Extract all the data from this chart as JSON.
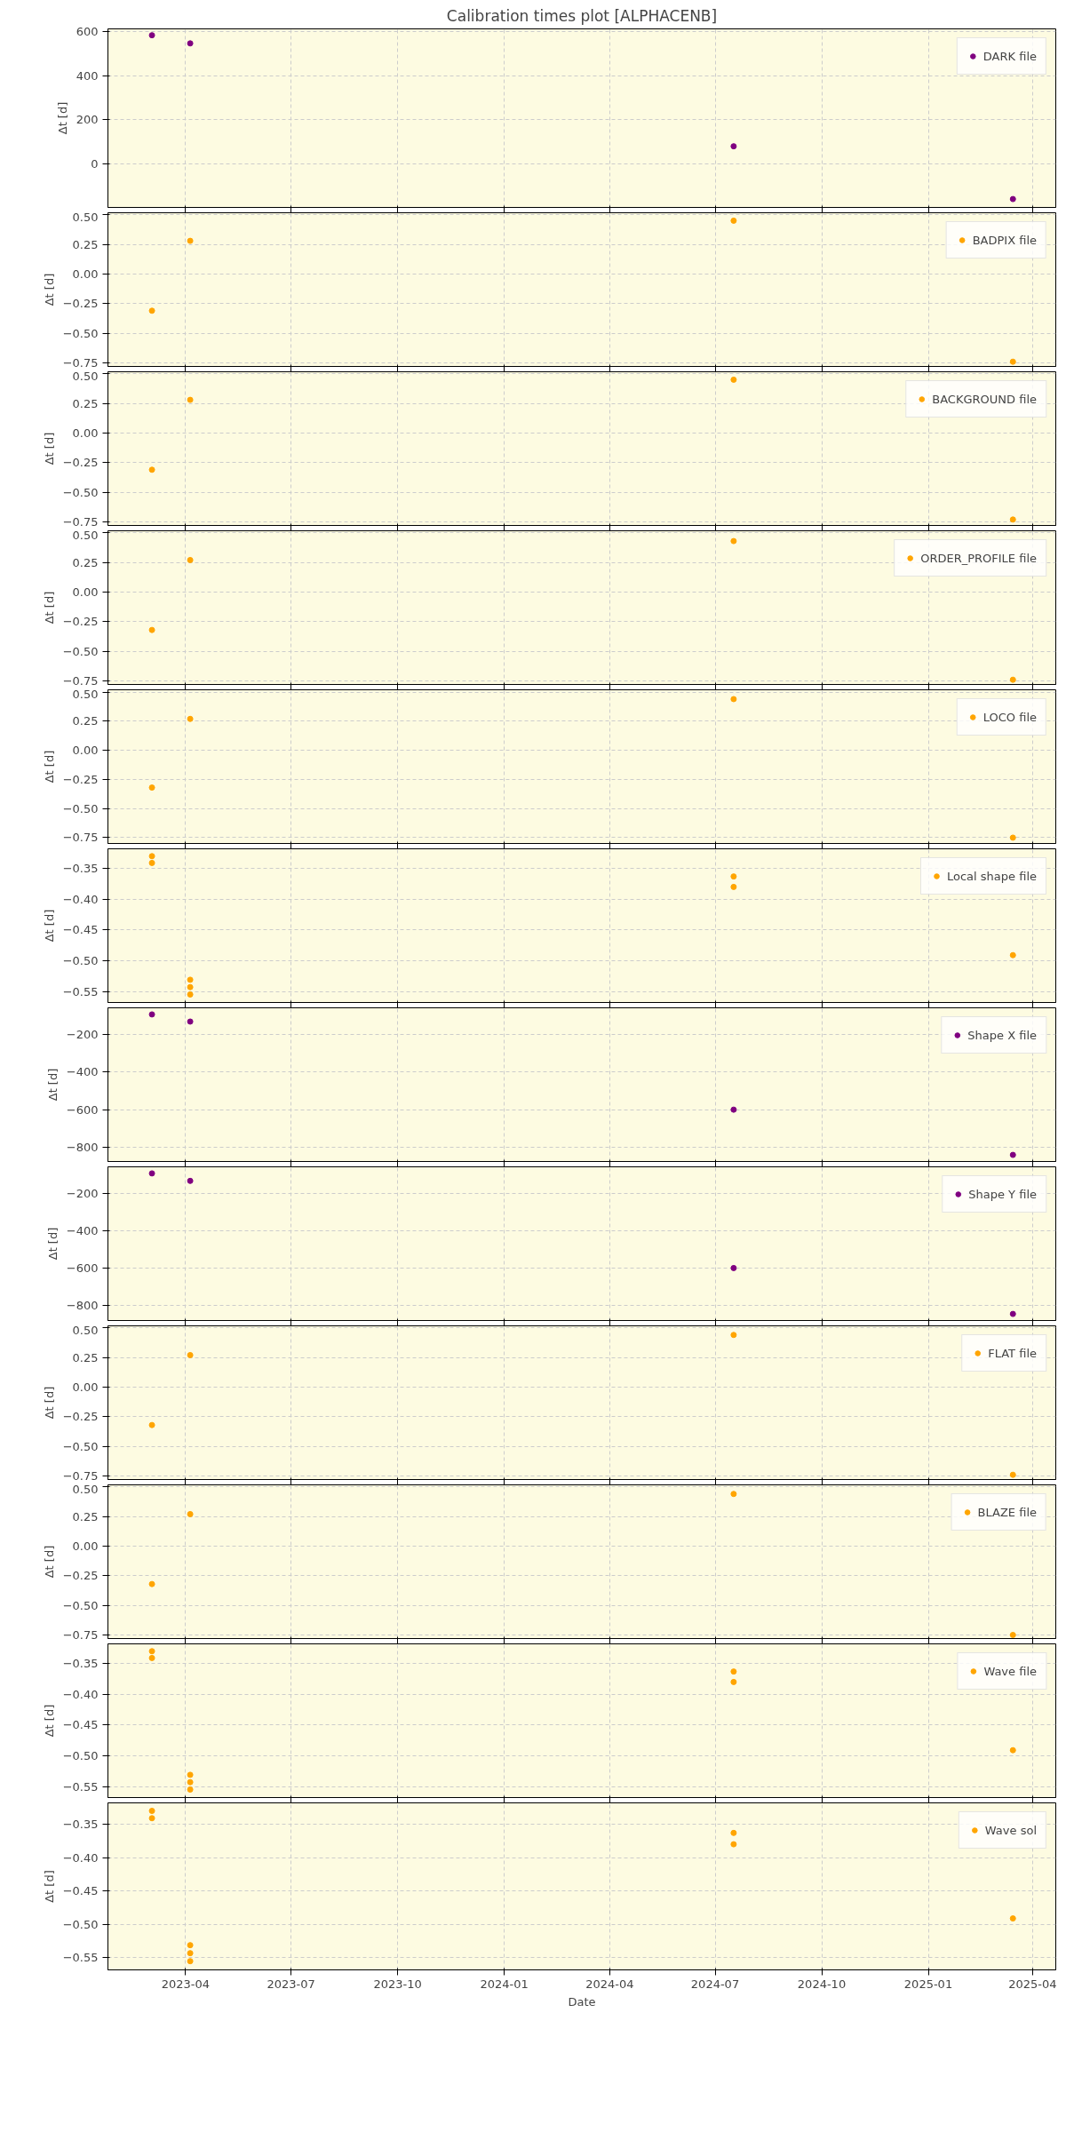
{
  "chart_data": [
    {
      "type": "scatter",
      "title": "Calibration times plot [ALPHACENB]",
      "ylabel": "Δt [d]",
      "x": [
        "2023-03-03",
        "2023-04-05",
        "2024-07-17",
        "2025-03-15"
      ],
      "series": [
        {
          "name": "DARK file",
          "color": "#800080",
          "values": [
            585,
            548,
            80,
            -160
          ]
        }
      ],
      "xlim": [
        "2023-01-24",
        "2025-04-21"
      ],
      "xticks": [
        "2023-04",
        "2023-07",
        "2023-10",
        "2024-01",
        "2024-04",
        "2024-07",
        "2024-10",
        "2025-01",
        "2025-04"
      ],
      "ylim": [
        -198,
        614
      ],
      "yticks": [
        0,
        200,
        400,
        600
      ],
      "tick_labels": "y",
      "grid": true,
      "legend": "top right",
      "marker": "circle"
    },
    {
      "type": "scatter",
      "ylabel": "Δt [d]",
      "x": [
        "2023-03-03",
        "2023-04-05",
        "2024-07-17",
        "2025-03-15"
      ],
      "series": [
        {
          "name": "BADPIX file",
          "color": "#ffa500",
          "values": [
            -0.31,
            0.28,
            0.45,
            -0.74
          ]
        }
      ],
      "xlim": [
        "2023-01-24",
        "2025-04-21"
      ],
      "xticks": [
        "2023-04",
        "2023-07",
        "2023-10",
        "2024-01",
        "2024-04",
        "2024-07",
        "2024-10",
        "2025-01",
        "2025-04"
      ],
      "ylim": [
        -0.78,
        0.517
      ],
      "yticks": [
        {
          "value": -0.75,
          "label": "−0.75"
        },
        {
          "value": -0.5,
          "label": "−0.50"
        },
        {
          "value": -0.25,
          "label": "−0.25"
        },
        {
          "value": 0,
          "label": "0.00"
        },
        {
          "value": 0.25,
          "label": "0.25"
        },
        {
          "value": 0.5,
          "label": "0.50"
        }
      ],
      "tick_labels": "y",
      "grid": true,
      "legend": "top right",
      "marker": "circle"
    },
    {
      "type": "scatter",
      "ylabel": "Δt [d]",
      "x": [
        "2023-03-03",
        "2023-04-05",
        "2024-07-17",
        "2025-03-15"
      ],
      "series": [
        {
          "name": "BACKGROUND file",
          "color": "#ffa500",
          "values": [
            -0.31,
            0.28,
            0.45,
            -0.73
          ]
        }
      ],
      "xlim": [
        "2023-01-24",
        "2025-04-21"
      ],
      "xticks": [
        "2023-04",
        "2023-07",
        "2023-10",
        "2024-01",
        "2024-04",
        "2024-07",
        "2024-10",
        "2025-01",
        "2025-04"
      ],
      "ylim": [
        -0.78,
        0.517
      ],
      "yticks": [
        {
          "value": -0.75,
          "label": "−0.75"
        },
        {
          "value": -0.5,
          "label": "−0.50"
        },
        {
          "value": -0.25,
          "label": "−0.25"
        },
        {
          "value": 0,
          "label": "0.00"
        },
        {
          "value": 0.25,
          "label": "0.25"
        },
        {
          "value": 0.5,
          "label": "0.50"
        }
      ],
      "tick_labels": "y",
      "grid": true,
      "legend": "top right",
      "marker": "circle"
    },
    {
      "type": "scatter",
      "ylabel": "Δt [d]",
      "x": [
        "2023-03-03",
        "2023-04-05",
        "2024-07-17",
        "2025-03-15"
      ],
      "series": [
        {
          "name": "ORDER_PROFILE file",
          "color": "#ffa500",
          "values": [
            -0.32,
            0.27,
            0.43,
            -0.74
          ]
        }
      ],
      "xlim": [
        "2023-01-24",
        "2025-04-21"
      ],
      "xticks": [
        "2023-04",
        "2023-07",
        "2023-10",
        "2024-01",
        "2024-04",
        "2024-07",
        "2024-10",
        "2025-01",
        "2025-04"
      ],
      "ylim": [
        -0.78,
        0.517
      ],
      "yticks": [
        {
          "value": -0.75,
          "label": "−0.75"
        },
        {
          "value": -0.5,
          "label": "−0.50"
        },
        {
          "value": -0.25,
          "label": "−0.25"
        },
        {
          "value": 0,
          "label": "0.00"
        },
        {
          "value": 0.25,
          "label": "0.25"
        },
        {
          "value": 0.5,
          "label": "0.50"
        }
      ],
      "tick_labels": "y",
      "grid": true,
      "legend": "top right",
      "marker": "circle"
    },
    {
      "type": "scatter",
      "ylabel": "Δt [d]",
      "x": [
        "2023-03-03",
        "2023-04-05",
        "2024-07-17",
        "2025-03-15"
      ],
      "series": [
        {
          "name": "LOCO file",
          "color": "#ffa500",
          "values": [
            -0.32,
            0.27,
            0.44,
            -0.75
          ]
        }
      ],
      "xlim": [
        "2023-01-24",
        "2025-04-21"
      ],
      "xticks": [
        "2023-04",
        "2023-07",
        "2023-10",
        "2024-01",
        "2024-04",
        "2024-07",
        "2024-10",
        "2025-01",
        "2025-04"
      ],
      "ylim": [
        -0.8,
        0.52
      ],
      "yticks": [
        {
          "value": -0.75,
          "label": "−0.75"
        },
        {
          "value": -0.5,
          "label": "−0.50"
        },
        {
          "value": -0.25,
          "label": "−0.25"
        },
        {
          "value": 0,
          "label": "0.00"
        },
        {
          "value": 0.25,
          "label": "0.25"
        },
        {
          "value": 0.5,
          "label": "0.50"
        }
      ],
      "tick_labels": "y",
      "grid": true,
      "legend": "top right",
      "marker": "circle"
    },
    {
      "type": "scatter",
      "ylabel": "Δt [d]",
      "x": [
        "2023-03-03",
        "2023-03-03",
        "2023-04-05",
        "2023-04-05",
        "2023-04-05",
        "2024-07-17",
        "2024-07-17",
        "2025-03-15"
      ],
      "series": [
        {
          "name": "Local shape file",
          "color": "#ffa500",
          "values": [
            -0.33,
            -0.341,
            -0.531,
            -0.543,
            -0.555,
            -0.363,
            -0.38,
            -0.491
          ]
        }
      ],
      "xlim": [
        "2023-01-24",
        "2025-04-21"
      ],
      "xticks": [
        "2023-04",
        "2023-07",
        "2023-10",
        "2024-01",
        "2024-04",
        "2024-07",
        "2024-10",
        "2025-01",
        "2025-04"
      ],
      "ylim": [
        -0.568,
        -0.318
      ],
      "yticks": [
        {
          "value": -0.55,
          "label": "−0.55"
        },
        {
          "value": -0.5,
          "label": "−0.50"
        },
        {
          "value": -0.45,
          "label": "−0.45"
        },
        {
          "value": -0.4,
          "label": "−0.40"
        },
        {
          "value": -0.35,
          "label": "−0.35"
        }
      ],
      "tick_labels": "y",
      "grid": true,
      "legend": "top right",
      "marker": "circle"
    },
    {
      "type": "scatter",
      "ylabel": "Δt [d]",
      "x": [
        "2023-03-03",
        "2023-04-05",
        "2024-07-17",
        "2025-03-15"
      ],
      "series": [
        {
          "name": "Shape X file",
          "color": "#800080",
          "values": [
            -95,
            -133,
            -600,
            -840
          ]
        }
      ],
      "xlim": [
        "2023-01-24",
        "2025-04-21"
      ],
      "xticks": [
        "2023-04",
        "2023-07",
        "2023-10",
        "2024-01",
        "2024-04",
        "2024-07",
        "2024-10",
        "2025-01",
        "2025-04"
      ],
      "ylim": [
        -875,
        -60
      ],
      "yticks": [
        {
          "value": -800,
          "label": "−800"
        },
        {
          "value": -600,
          "label": "−600"
        },
        {
          "value": -400,
          "label": "−400"
        },
        {
          "value": -200,
          "label": "−200"
        }
      ],
      "tick_labels": "y",
      "grid": true,
      "legend": "top right",
      "marker": "circle"
    },
    {
      "type": "scatter",
      "ylabel": "Δt [d]",
      "x": [
        "2023-03-03",
        "2023-04-05",
        "2024-07-17",
        "2025-03-15"
      ],
      "series": [
        {
          "name": "Shape Y file",
          "color": "#800080",
          "values": [
            -95,
            -135,
            -600,
            -845
          ]
        }
      ],
      "xlim": [
        "2023-01-24",
        "2025-04-21"
      ],
      "xticks": [
        "2023-04",
        "2023-07",
        "2023-10",
        "2024-01",
        "2024-04",
        "2024-07",
        "2024-10",
        "2025-01",
        "2025-04"
      ],
      "ylim": [
        -880,
        -60
      ],
      "yticks": [
        {
          "value": -800,
          "label": "−800"
        },
        {
          "value": -600,
          "label": "−600"
        },
        {
          "value": -400,
          "label": "−400"
        },
        {
          "value": -200,
          "label": "−200"
        }
      ],
      "tick_labels": "y",
      "grid": true,
      "legend": "top right",
      "marker": "circle"
    },
    {
      "type": "scatter",
      "ylabel": "Δt [d]",
      "x": [
        "2023-03-03",
        "2023-04-05",
        "2024-07-17",
        "2025-03-15"
      ],
      "series": [
        {
          "name": "FLAT file",
          "color": "#ffa500",
          "values": [
            -0.32,
            0.27,
            0.44,
            -0.74
          ]
        }
      ],
      "xlim": [
        "2023-01-24",
        "2025-04-21"
      ],
      "xticks": [
        "2023-04",
        "2023-07",
        "2023-10",
        "2024-01",
        "2024-04",
        "2024-07",
        "2024-10",
        "2025-01",
        "2025-04"
      ],
      "ylim": [
        -0.78,
        0.517
      ],
      "yticks": [
        {
          "value": -0.75,
          "label": "−0.75"
        },
        {
          "value": -0.5,
          "label": "−0.50"
        },
        {
          "value": -0.25,
          "label": "−0.25"
        },
        {
          "value": 0,
          "label": "0.00"
        },
        {
          "value": 0.25,
          "label": "0.25"
        },
        {
          "value": 0.5,
          "label": "0.50"
        }
      ],
      "tick_labels": "y",
      "grid": true,
      "legend": "top right",
      "marker": "circle"
    },
    {
      "type": "scatter",
      "ylabel": "Δt [d]",
      "x": [
        "2023-03-03",
        "2023-04-05",
        "2024-07-17",
        "2025-03-15"
      ],
      "series": [
        {
          "name": "BLAZE file",
          "color": "#ffa500",
          "values": [
            -0.32,
            0.27,
            0.44,
            -0.75
          ]
        }
      ],
      "xlim": [
        "2023-01-24",
        "2025-04-21"
      ],
      "xticks": [
        "2023-04",
        "2023-07",
        "2023-10",
        "2024-01",
        "2024-04",
        "2024-07",
        "2024-10",
        "2025-01",
        "2025-04"
      ],
      "ylim": [
        -0.78,
        0.517
      ],
      "yticks": [
        {
          "value": -0.75,
          "label": "−0.75"
        },
        {
          "value": -0.5,
          "label": "−0.50"
        },
        {
          "value": -0.25,
          "label": "−0.25"
        },
        {
          "value": 0,
          "label": "0.00"
        },
        {
          "value": 0.25,
          "label": "0.25"
        },
        {
          "value": 0.5,
          "label": "0.50"
        }
      ],
      "tick_labels": "y",
      "grid": true,
      "legend": "top right",
      "marker": "circle"
    },
    {
      "type": "scatter",
      "ylabel": "Δt [d]",
      "x": [
        "2023-03-03",
        "2023-03-03",
        "2023-04-05",
        "2023-04-05",
        "2023-04-05",
        "2024-07-17",
        "2024-07-17",
        "2025-03-15"
      ],
      "series": [
        {
          "name": "Wave file",
          "color": "#ffa500",
          "values": [
            -0.33,
            -0.341,
            -0.531,
            -0.543,
            -0.555,
            -0.363,
            -0.38,
            -0.491
          ]
        }
      ],
      "xlim": [
        "2023-01-24",
        "2025-04-21"
      ],
      "xticks": [
        "2023-04",
        "2023-07",
        "2023-10",
        "2024-01",
        "2024-04",
        "2024-07",
        "2024-10",
        "2025-01",
        "2025-04"
      ],
      "ylim": [
        -0.568,
        -0.318
      ],
      "yticks": [
        {
          "value": -0.55,
          "label": "−0.55"
        },
        {
          "value": -0.5,
          "label": "−0.50"
        },
        {
          "value": -0.45,
          "label": "−0.45"
        },
        {
          "value": -0.4,
          "label": "−0.40"
        },
        {
          "value": -0.35,
          "label": "−0.35"
        }
      ],
      "tick_labels": "y",
      "grid": true,
      "legend": "top right",
      "marker": "circle"
    },
    {
      "type": "scatter",
      "ylabel": "Δt [d]",
      "xlabel": "Date",
      "x": [
        "2023-03-03",
        "2023-03-03",
        "2023-04-05",
        "2023-04-05",
        "2023-04-05",
        "2024-07-17",
        "2024-07-17",
        "2025-03-15"
      ],
      "series": [
        {
          "name": "Wave sol",
          "color": "#ffa500",
          "values": [
            -0.33,
            -0.341,
            -0.531,
            -0.543,
            -0.555,
            -0.363,
            -0.38,
            -0.491
          ]
        }
      ],
      "xlim": [
        "2023-01-24",
        "2025-04-21"
      ],
      "xticks": [
        "2023-04",
        "2023-07",
        "2023-10",
        "2024-01",
        "2024-04",
        "2024-07",
        "2024-10",
        "2025-01",
        "2025-04"
      ],
      "ylim": [
        -0.568,
        -0.318
      ],
      "yticks": [
        {
          "value": -0.55,
          "label": "−0.55"
        },
        {
          "value": -0.5,
          "label": "−0.50"
        },
        {
          "value": -0.45,
          "label": "−0.45"
        },
        {
          "value": -0.4,
          "label": "−0.40"
        },
        {
          "value": -0.35,
          "label": "−0.35"
        }
      ],
      "grid": true,
      "legend": "top right",
      "marker": "circle"
    }
  ]
}
